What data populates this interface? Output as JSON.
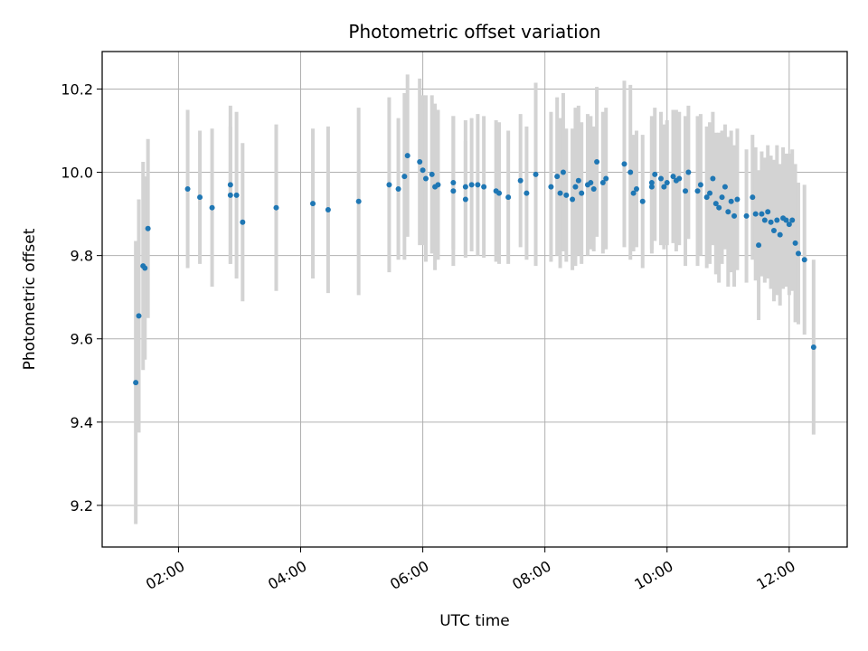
{
  "chart_data": {
    "type": "scatter",
    "title": "Photometric offset variation",
    "xlabel": "UTC time",
    "ylabel": "Photometric offset",
    "xlim_hours": [
      0.75,
      12.95
    ],
    "ylim": [
      9.1,
      10.29
    ],
    "grid": true,
    "x_ticks": [
      {
        "value": 2,
        "label": "02:00"
      },
      {
        "value": 4,
        "label": "04:00"
      },
      {
        "value": 6,
        "label": "06:00"
      },
      {
        "value": 8,
        "label": "08:00"
      },
      {
        "value": 10,
        "label": "10:00"
      },
      {
        "value": 12,
        "label": "12:00"
      }
    ],
    "y_ticks": [
      {
        "value": 9.2,
        "label": "9.2"
      },
      {
        "value": 9.4,
        "label": "9.4"
      },
      {
        "value": 9.6,
        "label": "9.6"
      },
      {
        "value": 9.8,
        "label": "9.8"
      },
      {
        "value": 10.0,
        "label": "10.0"
      },
      {
        "value": 10.2,
        "label": "10.2"
      }
    ],
    "colors": {
      "point": "#1f77b4",
      "errorbar": "#d3d3d3",
      "grid": "#b0b0b0"
    },
    "series": [
      {
        "name": "offset",
        "points": [
          [
            1.3,
            9.495,
            0.34
          ],
          [
            1.35,
            9.655,
            0.28
          ],
          [
            1.42,
            9.775,
            0.25
          ],
          [
            1.45,
            9.77,
            0.22
          ],
          [
            1.5,
            9.865,
            0.215
          ],
          [
            2.15,
            9.96,
            0.19
          ],
          [
            2.35,
            9.94,
            0.16
          ],
          [
            2.55,
            9.915,
            0.19
          ],
          [
            2.85,
            9.97,
            0.19
          ],
          [
            2.85,
            9.945,
            0.165
          ],
          [
            2.95,
            9.945,
            0.2
          ],
          [
            3.05,
            9.88,
            0.19
          ],
          [
            3.6,
            9.915,
            0.2
          ],
          [
            4.2,
            9.925,
            0.18
          ],
          [
            4.45,
            9.91,
            0.2
          ],
          [
            4.95,
            9.93,
            0.225
          ],
          [
            5.45,
            9.97,
            0.21
          ],
          [
            5.6,
            9.96,
            0.17
          ],
          [
            5.7,
            9.99,
            0.2
          ],
          [
            5.75,
            10.04,
            0.195
          ],
          [
            5.95,
            10.025,
            0.2
          ],
          [
            6.0,
            10.005,
            0.18
          ],
          [
            6.05,
            9.985,
            0.2
          ],
          [
            6.15,
            9.995,
            0.19
          ],
          [
            6.2,
            9.965,
            0.2
          ],
          [
            6.25,
            9.97,
            0.18
          ],
          [
            6.5,
            9.975,
            0.16
          ],
          [
            6.5,
            9.955,
            0.18
          ],
          [
            6.7,
            9.935,
            0.14
          ],
          [
            6.7,
            9.965,
            0.16
          ],
          [
            6.8,
            9.97,
            0.16
          ],
          [
            6.9,
            9.97,
            0.17
          ],
          [
            7.0,
            9.965,
            0.17
          ],
          [
            7.2,
            9.955,
            0.17
          ],
          [
            7.25,
            9.95,
            0.17
          ],
          [
            7.4,
            9.94,
            0.16
          ],
          [
            7.6,
            9.98,
            0.16
          ],
          [
            7.7,
            9.95,
            0.16
          ],
          [
            7.85,
            9.995,
            0.22
          ],
          [
            8.1,
            9.965,
            0.18
          ],
          [
            8.2,
            9.99,
            0.19
          ],
          [
            8.25,
            9.95,
            0.18
          ],
          [
            8.3,
            10.0,
            0.19
          ],
          [
            8.35,
            9.945,
            0.16
          ],
          [
            8.45,
            9.935,
            0.17
          ],
          [
            8.5,
            9.965,
            0.19
          ],
          [
            8.55,
            9.98,
            0.18
          ],
          [
            8.6,
            9.95,
            0.17
          ],
          [
            8.7,
            9.97,
            0.17
          ],
          [
            8.75,
            9.975,
            0.16
          ],
          [
            8.8,
            9.96,
            0.15
          ],
          [
            8.85,
            10.025,
            0.18
          ],
          [
            8.95,
            9.975,
            0.17
          ],
          [
            9.0,
            9.985,
            0.17
          ],
          [
            9.3,
            10.02,
            0.2
          ],
          [
            9.4,
            10.0,
            0.21
          ],
          [
            9.45,
            9.95,
            0.14
          ],
          [
            9.5,
            9.96,
            0.14
          ],
          [
            9.6,
            9.93,
            0.16
          ],
          [
            9.75,
            9.965,
            0.16
          ],
          [
            9.75,
            9.975,
            0.16
          ],
          [
            9.8,
            9.995,
            0.16
          ],
          [
            9.9,
            9.985,
            0.16
          ],
          [
            9.95,
            9.965,
            0.15
          ],
          [
            10.0,
            9.975,
            0.15
          ],
          [
            10.1,
            9.99,
            0.16
          ],
          [
            10.15,
            9.98,
            0.17
          ],
          [
            10.2,
            9.985,
            0.16
          ],
          [
            10.3,
            9.955,
            0.18
          ],
          [
            10.35,
            10.0,
            0.16
          ],
          [
            10.5,
            9.955,
            0.18
          ],
          [
            10.55,
            9.97,
            0.17
          ],
          [
            10.65,
            9.94,
            0.17
          ],
          [
            10.7,
            9.95,
            0.17
          ],
          [
            10.75,
            9.985,
            0.16
          ],
          [
            10.8,
            9.925,
            0.17
          ],
          [
            10.85,
            9.915,
            0.18
          ],
          [
            10.9,
            9.94,
            0.16
          ],
          [
            10.95,
            9.965,
            0.15
          ],
          [
            11.0,
            9.905,
            0.18
          ],
          [
            11.05,
            9.93,
            0.17
          ],
          [
            11.1,
            9.895,
            0.17
          ],
          [
            11.15,
            9.935,
            0.17
          ],
          [
            11.3,
            9.895,
            0.16
          ],
          [
            11.4,
            9.94,
            0.15
          ],
          [
            11.45,
            9.9,
            0.16
          ],
          [
            11.5,
            9.825,
            0.18
          ],
          [
            11.55,
            9.9,
            0.15
          ],
          [
            11.6,
            9.885,
            0.15
          ],
          [
            11.65,
            9.905,
            0.16
          ],
          [
            11.7,
            9.88,
            0.16
          ],
          [
            11.75,
            9.86,
            0.17
          ],
          [
            11.8,
            9.885,
            0.18
          ],
          [
            11.85,
            9.85,
            0.17
          ],
          [
            11.9,
            9.89,
            0.17
          ],
          [
            11.95,
            9.885,
            0.16
          ],
          [
            12.0,
            9.875,
            0.17
          ],
          [
            12.05,
            9.885,
            0.17
          ],
          [
            12.1,
            9.83,
            0.19
          ],
          [
            12.15,
            9.805,
            0.17
          ],
          [
            12.25,
            9.79,
            0.18
          ],
          [
            12.4,
            9.58,
            0.21
          ]
        ]
      }
    ]
  }
}
